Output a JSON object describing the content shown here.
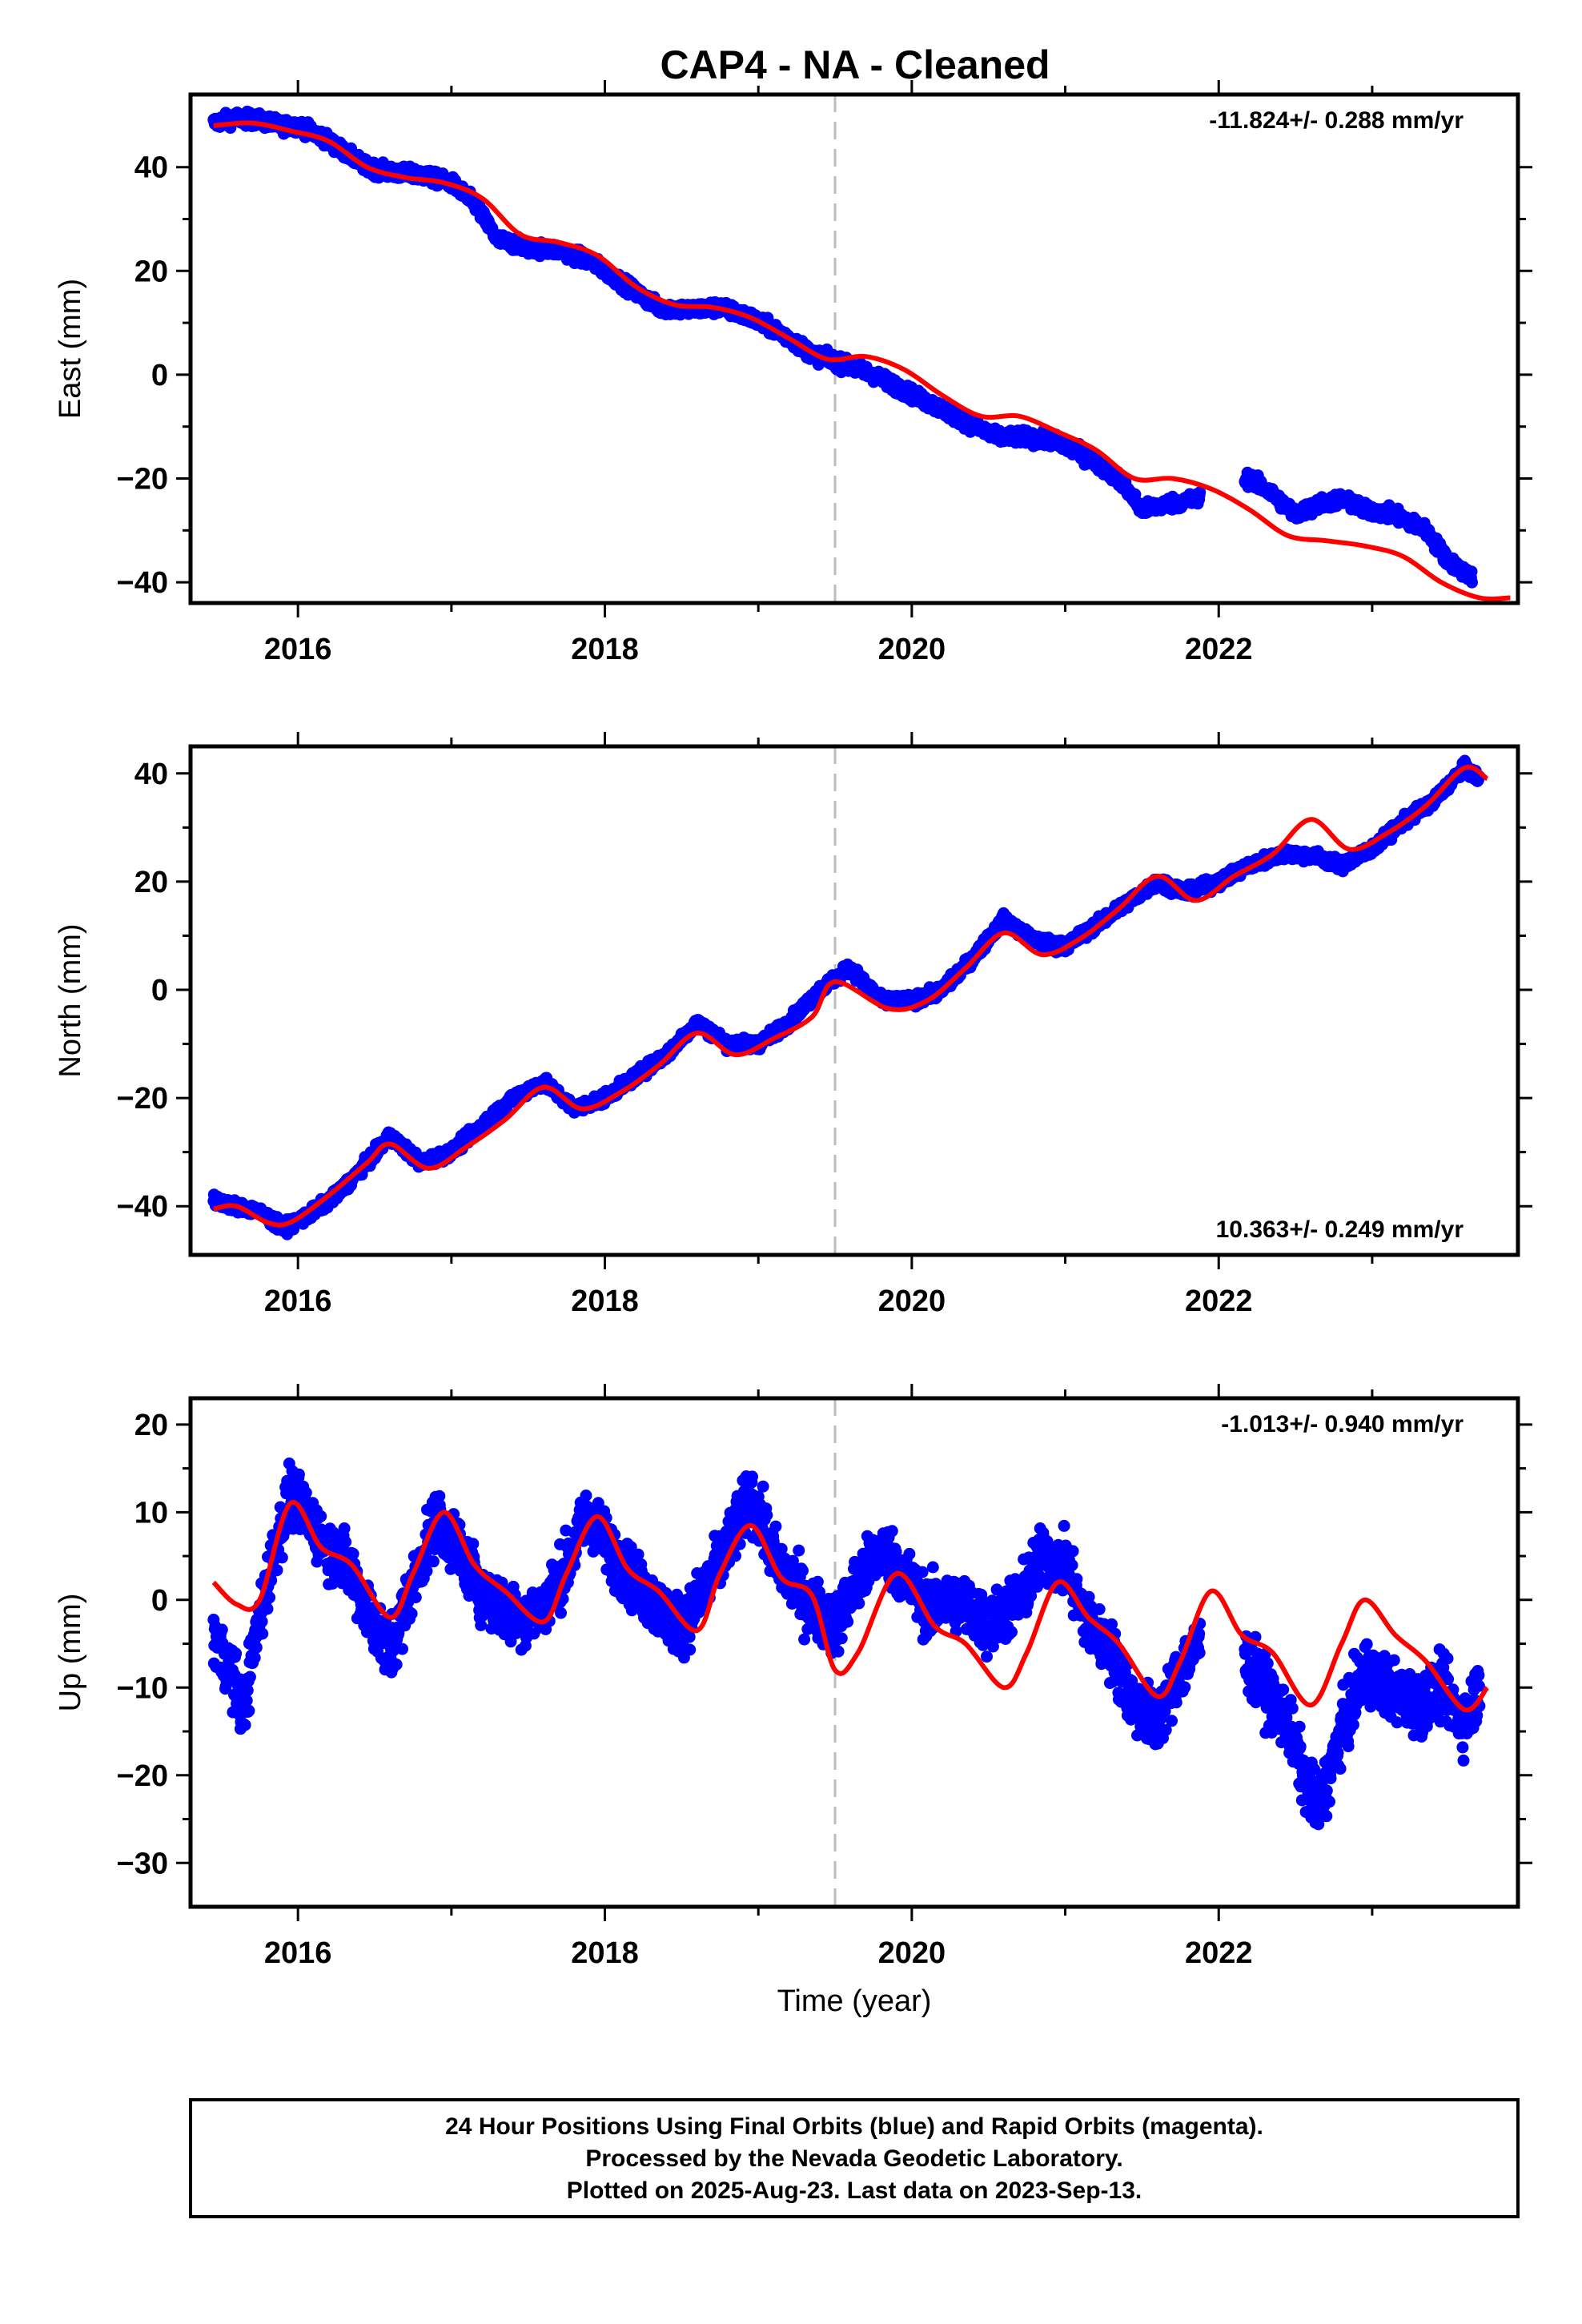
{
  "figure": {
    "title": "CAP4  - NA - Cleaned",
    "caption": [
      "24 Hour Positions Using Final Orbits (blue) and Rapid Orbits (magenta).",
      "Processed by the Nevada Geodetic Laboratory.",
      "Plotted on 2025-Aug-23. Last data on 2023-Sep-13."
    ],
    "colors": {
      "points": "#0000ff",
      "model": "#ff0000",
      "marker": "#bdbdbd",
      "frame": "#000000"
    }
  },
  "chart_data": [
    {
      "type": "scatter",
      "ylabel": "East (mm)",
      "xlabel": "",
      "xlim": [
        2015.3,
        2023.95
      ],
      "ylim": [
        -44,
        54
      ],
      "x_ticks": [
        2016,
        2018,
        2020,
        2022
      ],
      "y_ticks": [
        -40,
        -20,
        0,
        20,
        40
      ],
      "rate_label": "-11.824+/- 0.288 mm/yr",
      "rate_position": "top-right",
      "vertical_marker_x": 2019.5,
      "point_color": "#0000ff",
      "line_color": "#ff0000",
      "series": [
        {
          "kind": "points",
          "x": [
            2015.45,
            2015.6,
            2015.75,
            2015.9,
            2016.0,
            2016.15,
            2016.3,
            2016.45,
            2016.6,
            2016.8,
            2017.0,
            2017.15,
            2017.3,
            2017.5,
            2017.7,
            2017.9,
            2018.05,
            2018.2,
            2018.35,
            2018.55,
            2018.75,
            2018.95,
            2019.15,
            2019.35,
            2019.55,
            2019.75,
            2019.95,
            2020.15,
            2020.35,
            2020.55,
            2020.75,
            2020.95,
            2021.15,
            2021.35,
            2021.5,
            2021.65,
            2021.85,
            2022.2,
            2022.35,
            2022.5,
            2022.65,
            2022.8,
            2022.95,
            2023.15,
            2023.35,
            2023.5,
            2023.65
          ],
          "y": [
            48.5,
            49.5,
            49,
            48,
            48,
            46,
            43,
            40,
            39,
            38.5,
            37,
            33,
            26,
            24.5,
            24,
            22,
            19,
            16,
            13,
            12.5,
            13,
            11,
            8,
            4,
            2,
            0,
            -3,
            -6,
            -9,
            -12,
            -12,
            -13,
            -16,
            -20,
            -26,
            -25,
            -24,
            -20,
            -23,
            -27,
            -25,
            -24,
            -26,
            -27,
            -30,
            -36,
            -39
          ]
        },
        {
          "kind": "model",
          "x": [
            2015.45,
            2015.7,
            2015.95,
            2016.2,
            2016.45,
            2016.7,
            2016.95,
            2017.2,
            2017.45,
            2017.7,
            2017.95,
            2018.2,
            2018.45,
            2018.7,
            2018.95,
            2019.2,
            2019.45,
            2019.7,
            2019.95,
            2020.2,
            2020.45,
            2020.7,
            2020.95,
            2021.2,
            2021.45,
            2021.7,
            2021.95,
            2022.2,
            2022.45,
            2022.7,
            2022.95,
            2023.2,
            2023.45,
            2023.7,
            2023.9
          ],
          "y": [
            48,
            48.5,
            47,
            45,
            40,
            38,
            37,
            34,
            27,
            25.5,
            23,
            17,
            13.5,
            13,
            11,
            7,
            3,
            3.5,
            1,
            -4,
            -8,
            -8,
            -11,
            -14.5,
            -20,
            -20,
            -22,
            -26,
            -31,
            -32,
            -33,
            -35,
            -40,
            -43,
            -43
          ]
        }
      ]
    },
    {
      "type": "scatter",
      "ylabel": "North (mm)",
      "xlabel": "",
      "xlim": [
        2015.3,
        2023.95
      ],
      "ylim": [
        -49,
        45
      ],
      "x_ticks": [
        2016,
        2018,
        2020,
        2022
      ],
      "y_ticks": [
        -40,
        -20,
        0,
        20,
        40
      ],
      "rate_label": "10.363+/- 0.249 mm/yr",
      "rate_position": "bottom-right",
      "vertical_marker_x": 2019.5,
      "point_color": "#0000ff",
      "line_color": "#ff0000",
      "series": [
        {
          "kind": "points",
          "x": [
            2015.45,
            2015.6,
            2015.75,
            2015.9,
            2016.05,
            2016.25,
            2016.45,
            2016.6,
            2016.8,
            2017.0,
            2017.2,
            2017.4,
            2017.6,
            2017.8,
            2018.0,
            2018.2,
            2018.4,
            2018.6,
            2018.8,
            2019.0,
            2019.2,
            2019.4,
            2019.6,
            2019.8,
            2020.0,
            2020.2,
            2020.4,
            2020.6,
            2020.8,
            2021.0,
            2021.2,
            2021.4,
            2021.6,
            2021.8,
            2022.0,
            2022.2,
            2022.4,
            2022.6,
            2022.8,
            2023.0,
            2023.2,
            2023.4,
            2023.6,
            2023.7
          ],
          "y": [
            -39,
            -40,
            -41,
            -44,
            -42,
            -38,
            -32,
            -27,
            -32,
            -30,
            -25,
            -20,
            -17,
            -22,
            -20,
            -16,
            -12,
            -6,
            -10,
            -10,
            -6,
            0,
            4,
            -2,
            -2,
            0,
            6,
            13,
            9,
            8,
            12,
            16,
            20,
            18,
            20,
            23,
            25,
            25,
            23,
            26,
            31,
            35,
            41,
            39
          ]
        },
        {
          "kind": "model",
          "x": [
            2015.45,
            2015.6,
            2015.8,
            2015.95,
            2016.2,
            2016.45,
            2016.6,
            2016.85,
            2017.1,
            2017.35,
            2017.6,
            2017.85,
            2018.1,
            2018.35,
            2018.6,
            2018.85,
            2019.1,
            2019.35,
            2019.5,
            2019.85,
            2020.1,
            2020.35,
            2020.6,
            2020.85,
            2021.1,
            2021.35,
            2021.6,
            2021.85,
            2022.1,
            2022.35,
            2022.6,
            2022.85,
            2023.1,
            2023.35,
            2023.6,
            2023.75
          ],
          "y": [
            -40.5,
            -40,
            -43,
            -43,
            -38,
            -32,
            -28.5,
            -33,
            -29,
            -24,
            -18,
            -22,
            -19,
            -14,
            -8,
            -12,
            -9,
            -5,
            1.5,
            -3.5,
            -2,
            4,
            10.5,
            6.5,
            9.5,
            15,
            21,
            16.5,
            21,
            25,
            31.5,
            26,
            29,
            34,
            41,
            39
          ]
        }
      ]
    },
    {
      "type": "scatter",
      "ylabel": "Up (mm)",
      "xlabel": "Time (year)",
      "xlim": [
        2015.3,
        2023.95
      ],
      "ylim": [
        -35,
        23
      ],
      "x_ticks": [
        2016,
        2018,
        2020,
        2022
      ],
      "y_ticks": [
        -30,
        -20,
        -10,
        0,
        10,
        20
      ],
      "rate_label": "-1.013+/- 0.940 mm/yr",
      "rate_position": "top-right",
      "vertical_marker_x": 2019.5,
      "point_color": "#0000ff",
      "line_color": "#ff0000",
      "series": [
        {
          "kind": "points",
          "x": [
            2015.45,
            2015.55,
            2015.65,
            2015.75,
            2015.85,
            2015.95,
            2016.05,
            2016.2,
            2016.35,
            2016.5,
            2016.6,
            2016.75,
            2016.9,
            2017.05,
            2017.2,
            2017.4,
            2017.6,
            2017.75,
            2017.9,
            2018.05,
            2018.2,
            2018.35,
            2018.5,
            2018.65,
            2018.8,
            2018.95,
            2019.1,
            2019.3,
            2019.5,
            2019.65,
            2019.8,
            2019.95,
            2020.1,
            2020.3,
            2020.5,
            2020.7,
            2020.85,
            2021.0,
            2021.15,
            2021.3,
            2021.45,
            2021.6,
            2021.75,
            2021.95,
            2022.15,
            2022.3,
            2022.45,
            2022.55,
            2022.65,
            2022.8,
            2022.95,
            2023.1,
            2023.3,
            2023.45,
            2023.6,
            2023.7
          ],
          "y": [
            -4,
            -8,
            -12,
            -2,
            6,
            12,
            10,
            6,
            3,
            -3,
            -6,
            2,
            9,
            6,
            1,
            -2,
            -1,
            4,
            10,
            5,
            2,
            -1,
            -3,
            1,
            6,
            12,
            5,
            0,
            -3,
            2,
            6,
            3,
            -1,
            0,
            -3,
            0,
            5,
            4,
            -3,
            -6,
            -12,
            -14,
            -8,
            -3,
            -6,
            -10,
            -14,
            -20,
            -24,
            -15,
            -8,
            -10,
            -12,
            -10,
            -14,
            -10
          ]
        },
        {
          "kind": "model",
          "x": [
            2015.45,
            2015.6,
            2015.75,
            2015.95,
            2016.15,
            2016.35,
            2016.6,
            2016.75,
            2016.95,
            2017.15,
            2017.35,
            2017.6,
            2017.75,
            2017.95,
            2018.15,
            2018.35,
            2018.6,
            2018.75,
            2018.95,
            2019.15,
            2019.35,
            2019.5,
            2019.65,
            2019.9,
            2020.15,
            2020.35,
            2020.6,
            2020.75,
            2020.95,
            2021.15,
            2021.35,
            2021.6,
            2021.75,
            2021.95,
            2022.15,
            2022.35,
            2022.6,
            2022.8,
            2022.95,
            2023.15,
            2023.35,
            2023.6,
            2023.75
          ],
          "y": [
            2,
            -0.5,
            0,
            11,
            6,
            4,
            -2,
            3,
            10,
            4,
            1,
            -2.5,
            3,
            9.5,
            3.5,
            1,
            -3.5,
            3,
            8.5,
            2.5,
            0.5,
            -8,
            -6,
            3,
            -3,
            -5,
            -10,
            -6,
            2,
            -2,
            -5,
            -11,
            -7,
            1,
            -4,
            -6,
            -12,
            -5,
            0,
            -4,
            -7,
            -12.5,
            -10
          ]
        }
      ]
    }
  ]
}
